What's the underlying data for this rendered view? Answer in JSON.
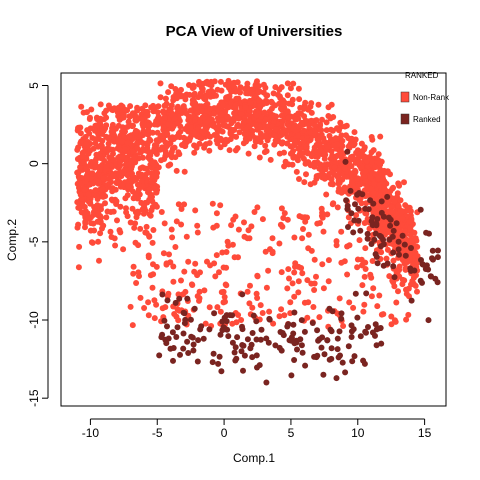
{
  "chart_data": {
    "type": "scatter",
    "title": "PCA View of Universities",
    "xlabel": "Comp.1",
    "ylabel": "Comp.2",
    "xlim": [
      -12.2,
      16.6
    ],
    "ylim": [
      -15.5,
      5.8
    ],
    "x_ticks": [
      -10,
      -5,
      0,
      5,
      10,
      15
    ],
    "y_ticks": [
      5,
      0,
      -5,
      -10,
      -15
    ],
    "x_tick_labels": [
      "-10",
      "-5",
      "0",
      "5",
      "10",
      "15"
    ],
    "y_tick_labels": [
      "5",
      "0",
      "-5",
      "-10",
      "-15"
    ],
    "grid": false,
    "legend": {
      "title": "RANKED",
      "placement": "top-right",
      "entries": [
        {
          "label": "Non-Rank",
          "color": "#FF4B3A"
        },
        {
          "label": "Ranked",
          "color": "#7A2420"
        }
      ]
    },
    "series": [
      {
        "name": "Non-Rank",
        "color": "#FF4B3A",
        "regions": [
          {
            "description_x": [
              -11,
              -4
            ],
            "y": [
              -6.5,
              3.5
            ]
          },
          {
            "description_x": [
              -4,
              4
            ],
            "y": [
              -2.5,
              5
            ]
          },
          {
            "description_x": [
              4,
              12
            ],
            "y": [
              -3,
              3.5
            ]
          },
          {
            "description_x": [
              10,
              15
            ],
            "y": [
              -8,
              -1
            ]
          },
          {
            "description_x": [
              -6,
              12
            ],
            "y": [
              -11,
              -3
            ]
          }
        ],
        "approx_count": 2600
      },
      {
        "name": "Ranked",
        "color": "#7A2420",
        "regions": [
          {
            "description_x": [
              -5,
              12
            ],
            "y": [
              -14,
              -8.5
            ]
          },
          {
            "description_x": [
              9,
              16
            ],
            "y": [
              -9,
              -2
            ]
          }
        ],
        "approx_count": 260
      }
    ]
  }
}
